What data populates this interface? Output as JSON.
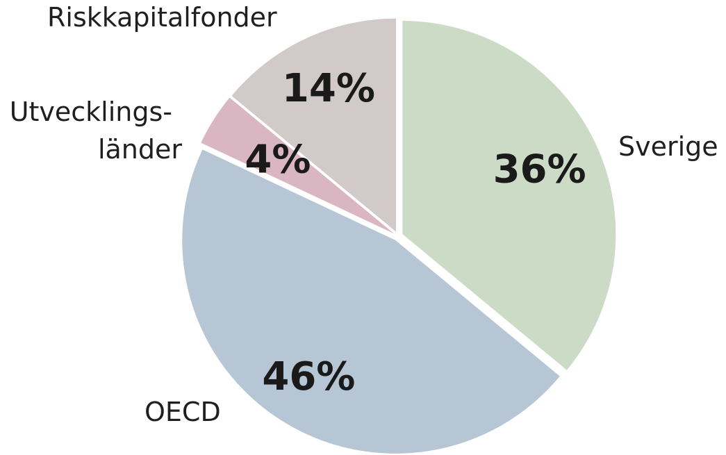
{
  "chart_data": {
    "type": "pie",
    "title": "",
    "slices": [
      {
        "name": "Sverige",
        "value": 36,
        "label": "36%",
        "color": "#ccdbc5"
      },
      {
        "name": "OECD",
        "value": 46,
        "label": "46%",
        "color": "#b6c6d5"
      },
      {
        "name": "Utvecklings-länder",
        "value": 4,
        "label": "4%",
        "color": "#d9b6c1"
      },
      {
        "name": "Riskkapitalfonder",
        "value": 14,
        "label": "14%",
        "color": "#d1cac8"
      }
    ],
    "start_angle": "12 o'clock",
    "direction": "clockwise",
    "separator_color": "#ffffff"
  },
  "labels": {
    "sverige": "Sverige",
    "oecd": "OECD",
    "utveckling_line1": "Utvecklings-",
    "utveckling_line2": "länder",
    "riskkapital": "Riskkapitalfonder"
  }
}
